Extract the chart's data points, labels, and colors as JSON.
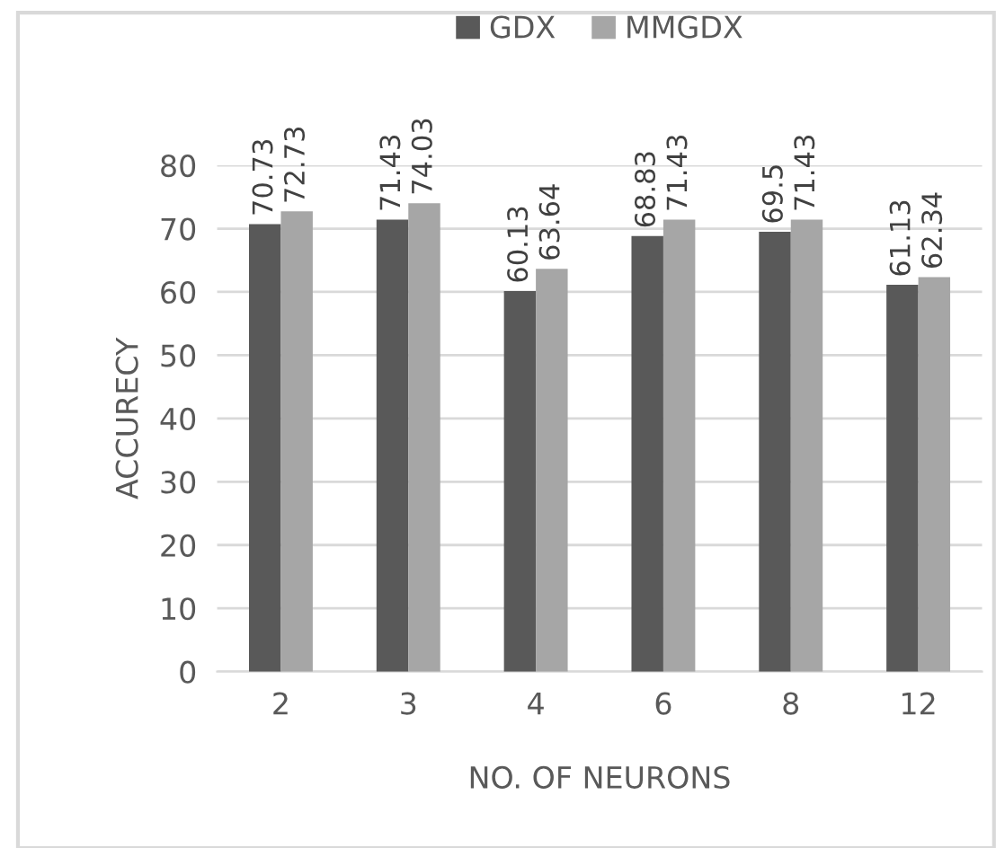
{
  "chart_data": {
    "type": "bar",
    "xlabel": "NO. OF NEURONS",
    "ylabel": "ACCURECY",
    "categories": [
      "2",
      "3",
      "4",
      "6",
      "8",
      "12"
    ],
    "series": [
      {
        "name": "GDX",
        "color": "#595959",
        "values": [
          70.73,
          71.43,
          60.13,
          68.83,
          69.5,
          61.13
        ]
      },
      {
        "name": "MMGDX",
        "color": "#a6a6a6",
        "values": [
          72.73,
          74.03,
          63.64,
          71.43,
          71.43,
          62.34
        ]
      }
    ],
    "ylim": [
      0,
      80
    ],
    "yticks": [
      0,
      10,
      20,
      30,
      40,
      50,
      60,
      70,
      80
    ],
    "grid": "y",
    "legend": "top",
    "data_labels": true
  }
}
